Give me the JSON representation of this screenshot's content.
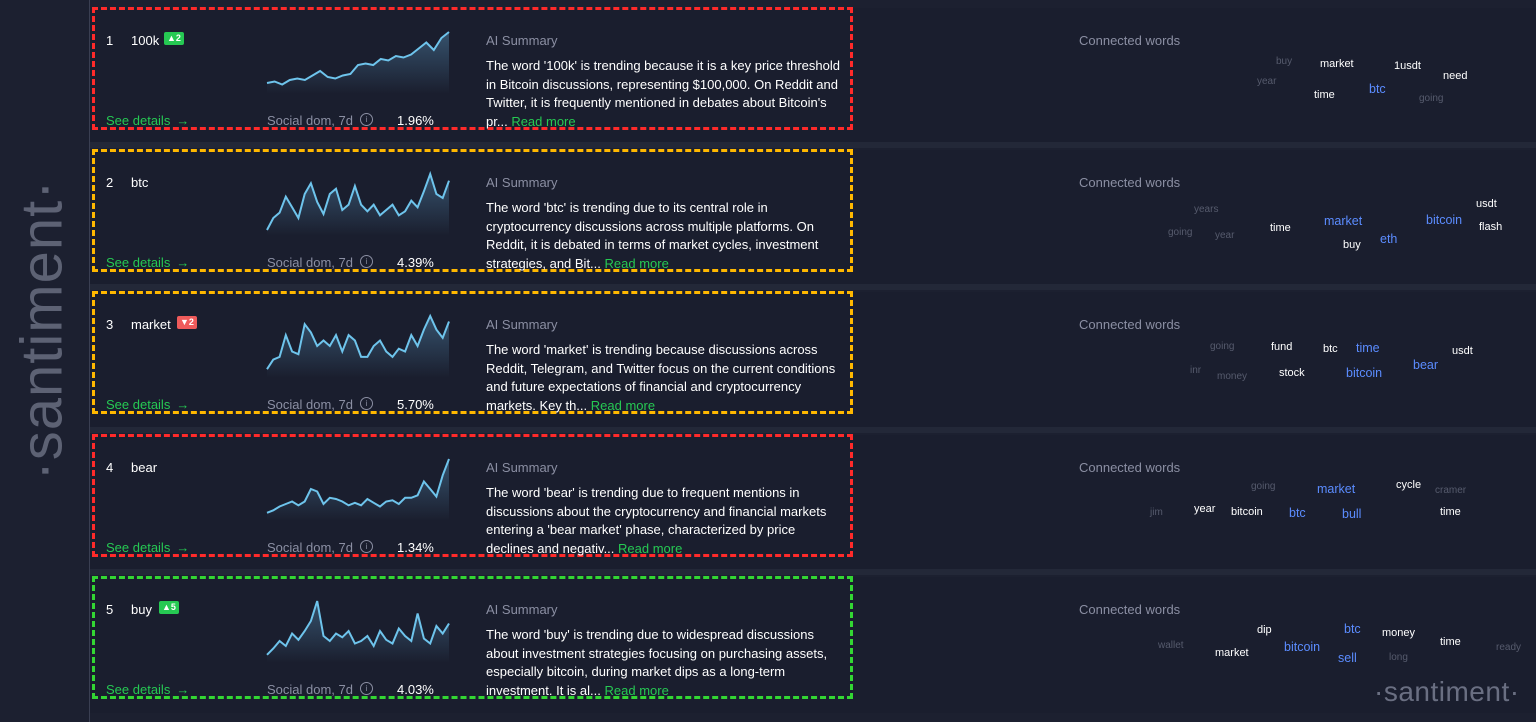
{
  "brand": "·santiment·",
  "columns": {
    "see_details": "See details",
    "social_dom_label": "Social dom, 7d",
    "ai_label": "AI Summary",
    "connected_label": "Connected words",
    "read_more": "Read more"
  },
  "colors": {
    "accent_green": "#26c953",
    "link_blue": "#5b8cff",
    "frame_red": "#ff2a2a",
    "frame_orange": "#ffb800",
    "frame_green": "#33d633",
    "badge_up": "#26c953",
    "badge_down": "#ef5b5b"
  },
  "rows": [
    {
      "rank": "1",
      "word": "100k",
      "badge": "▲2",
      "badge_dir": "up",
      "frame": "red",
      "social_dom": "1.96%",
      "summary": "The word '100k' is trending because it is a key price threshold in Bitcoin discussions, representing $100,000. On Reddit and Twitter, it is frequently mentioned in debates about Bitcoin's pr...",
      "trend": [
        6,
        7,
        5,
        8,
        9,
        8,
        11,
        14,
        10,
        9,
        11,
        12,
        18,
        19,
        18,
        22,
        21,
        24,
        23,
        25,
        29,
        33,
        28,
        36,
        40
      ],
      "connected": [
        {
          "t": "buy",
          "s": "g"
        },
        {
          "t": "market",
          "s": "w"
        },
        {
          "t": "1usdt",
          "s": "w"
        },
        {
          "t": "need",
          "s": "w"
        },
        {
          "t": "year",
          "s": "g"
        },
        {
          "t": "time",
          "s": "w"
        },
        {
          "t": "btc",
          "s": "b"
        },
        {
          "t": "going",
          "s": "g"
        }
      ]
    },
    {
      "rank": "2",
      "word": "btc",
      "badge": "",
      "badge_dir": "",
      "frame": "orange",
      "social_dom": "4.39%",
      "summary": "The word 'btc' is trending due to its central role in cryptocurrency discussions across multiple platforms. On Reddit, it is debated in terms of market cycles, investment strategies, and Bit...",
      "trend": [
        3,
        12,
        16,
        28,
        20,
        12,
        30,
        38,
        24,
        15,
        30,
        34,
        18,
        22,
        36,
        22,
        17,
        22,
        14,
        18,
        22,
        14,
        17,
        25,
        20,
        32,
        45,
        30,
        27,
        40
      ],
      "connected": [
        {
          "t": "years",
          "s": "g"
        },
        {
          "t": "going",
          "s": "g"
        },
        {
          "t": "year",
          "s": "g"
        },
        {
          "t": "time",
          "s": "w"
        },
        {
          "t": "market",
          "s": "b"
        },
        {
          "t": "buy",
          "s": "w"
        },
        {
          "t": "eth",
          "s": "b"
        },
        {
          "t": "bitcoin",
          "s": "b"
        },
        {
          "t": "usdt",
          "s": "w"
        },
        {
          "t": "flash",
          "s": "w"
        }
      ]
    },
    {
      "rank": "3",
      "word": "market",
      "badge": "▼2",
      "badge_dir": "down",
      "frame": "orange",
      "social_dom": "5.70%",
      "summary": "The word 'market' is trending because discussions across Reddit, Telegram, and Twitter focus on the current conditions and future expectations of financial and cryptocurrency markets. Key th...",
      "trend": [
        5,
        12,
        14,
        30,
        18,
        16,
        38,
        32,
        22,
        26,
        22,
        30,
        18,
        30,
        26,
        14,
        14,
        22,
        26,
        18,
        14,
        20,
        18,
        30,
        22,
        34,
        44,
        34,
        28,
        40
      ],
      "connected": [
        {
          "t": "going",
          "s": "g"
        },
        {
          "t": "fund",
          "s": "w"
        },
        {
          "t": "btc",
          "s": "w"
        },
        {
          "t": "time",
          "s": "b"
        },
        {
          "t": "usdt",
          "s": "w"
        },
        {
          "t": "inr",
          "s": "g"
        },
        {
          "t": "money",
          "s": "g"
        },
        {
          "t": "stock",
          "s": "w"
        },
        {
          "t": "bitcoin",
          "s": "b"
        },
        {
          "t": "bear",
          "s": "b"
        }
      ]
    },
    {
      "rank": "4",
      "word": "bear",
      "badge": "",
      "badge_dir": "",
      "frame": "red",
      "social_dom": "1.34%",
      "summary": "The word 'bear' is trending due to frequent mentions in discussions about the cryptocurrency and financial markets entering a 'bear market' phase, characterized by price declines and negativ...",
      "trend": [
        5,
        7,
        10,
        12,
        14,
        11,
        14,
        24,
        22,
        12,
        17,
        16,
        14,
        11,
        13,
        11,
        16,
        13,
        10,
        14,
        15,
        12,
        17,
        17,
        19,
        30,
        24,
        18,
        35,
        48
      ],
      "connected": [
        {
          "t": "going",
          "s": "g"
        },
        {
          "t": "market",
          "s": "b"
        },
        {
          "t": "cycle",
          "s": "w"
        },
        {
          "t": "cramer",
          "s": "g"
        },
        {
          "t": "jim",
          "s": "g"
        },
        {
          "t": "year",
          "s": "w"
        },
        {
          "t": "bitcoin",
          "s": "w"
        },
        {
          "t": "btc",
          "s": "b"
        },
        {
          "t": "bull",
          "s": "b"
        },
        {
          "t": "time",
          "s": "w"
        }
      ]
    },
    {
      "rank": "5",
      "word": "buy",
      "badge": "▲5",
      "badge_dir": "up",
      "frame": "green",
      "social_dom": "4.03%",
      "summary": "The word 'buy' is trending due to widespread discussions about investment strategies focusing on purchasing assets, especially bitcoin, during market dips as a long-term investment. It is al...",
      "trend": [
        5,
        10,
        16,
        12,
        22,
        17,
        24,
        32,
        48,
        20,
        16,
        22,
        19,
        24,
        14,
        16,
        20,
        12,
        24,
        17,
        14,
        26,
        20,
        16,
        38,
        18,
        14,
        28,
        22,
        30
      ],
      "connected": [
        {
          "t": "dip",
          "s": "w"
        },
        {
          "t": "btc",
          "s": "b"
        },
        {
          "t": "money",
          "s": "w"
        },
        {
          "t": "time",
          "s": "w"
        },
        {
          "t": "wallet",
          "s": "g"
        },
        {
          "t": "market",
          "s": "w"
        },
        {
          "t": "bitcoin",
          "s": "b"
        },
        {
          "t": "sell",
          "s": "b"
        },
        {
          "t": "long",
          "s": "g"
        },
        {
          "t": "ready",
          "s": "g"
        }
      ]
    }
  ]
}
